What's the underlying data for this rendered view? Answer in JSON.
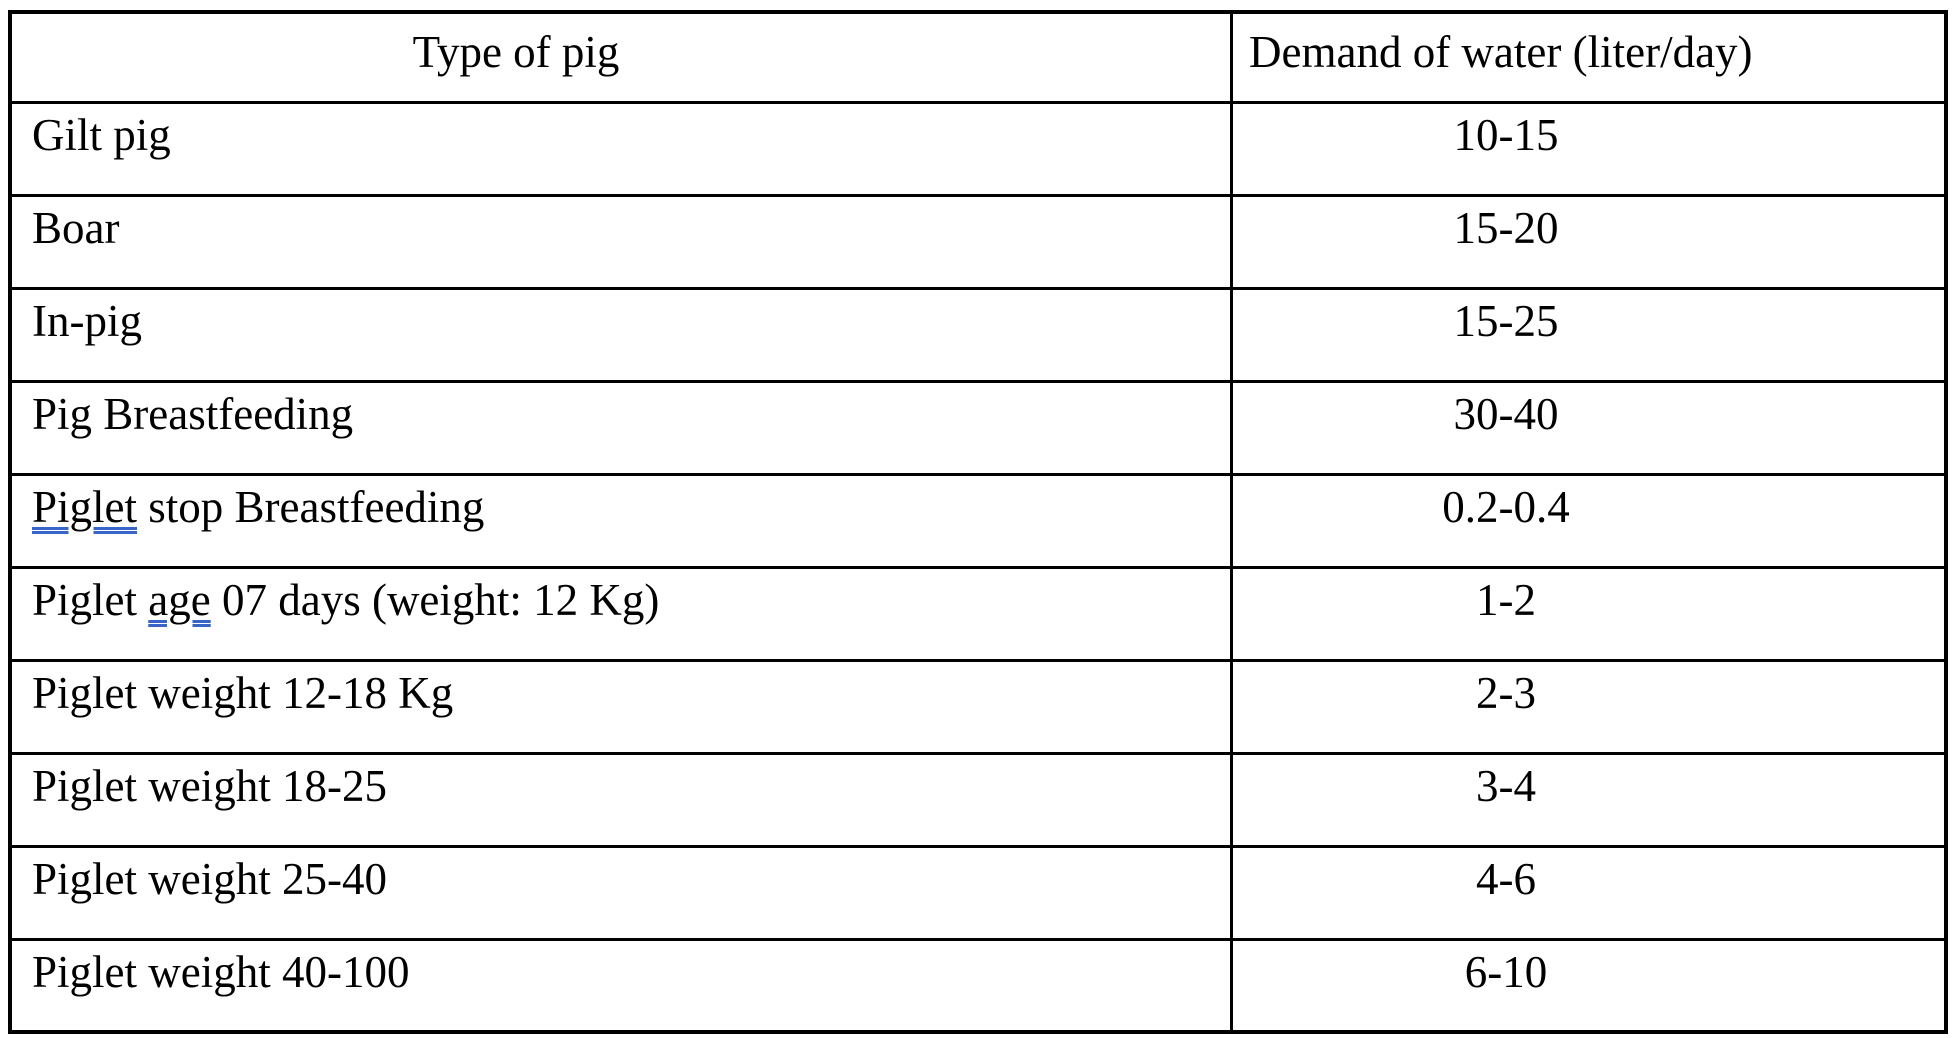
{
  "colors": {
    "border": "#000000",
    "text": "#000000",
    "grammar_underline": "#3a65c8"
  },
  "table": {
    "columns": [
      {
        "label": "Type of pig"
      },
      {
        "label": "Demand of water (liter/day)"
      }
    ],
    "rows": [
      {
        "type_segments": [
          {
            "text": "Gilt pig"
          }
        ],
        "demand": "10-15"
      },
      {
        "type_segments": [
          {
            "text": "Boar"
          }
        ],
        "demand": "15-20"
      },
      {
        "type_segments": [
          {
            "text": "In-pig"
          }
        ],
        "demand": "15-25"
      },
      {
        "type_segments": [
          {
            "text": "Pig Breastfeeding"
          }
        ],
        "demand": "30-40"
      },
      {
        "type_segments": [
          {
            "text": "Piglet",
            "grammar_underline": true
          },
          {
            "text": " stop Breastfeeding"
          }
        ],
        "demand": "0.2-0.4"
      },
      {
        "type_segments": [
          {
            "text": "Piglet "
          },
          {
            "text": "age",
            "grammar_underline": true
          },
          {
            "text": " 07 days (weight: 12 Kg)"
          }
        ],
        "demand": "1-2"
      },
      {
        "type_segments": [
          {
            "text": "Piglet weight 12-18 Kg"
          }
        ],
        "demand": "2-3"
      },
      {
        "type_segments": [
          {
            "text": "Piglet weight 18-25"
          }
        ],
        "demand": "3-4"
      },
      {
        "type_segments": [
          {
            "text": "Piglet weight 25-40"
          }
        ],
        "demand": "4-6"
      },
      {
        "type_segments": [
          {
            "text": "Piglet weight 40-100"
          }
        ],
        "demand": "6-10"
      }
    ]
  }
}
